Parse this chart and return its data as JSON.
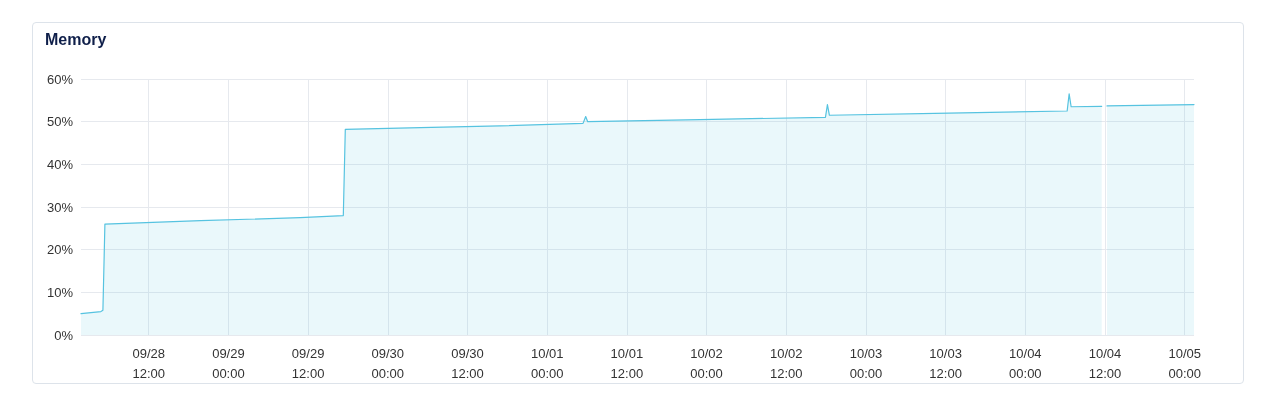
{
  "chart_data": {
    "type": "area",
    "title": "Memory",
    "x": [
      "--09-28T01:48",
      "--09-28T04:48",
      "--09-28T05:06",
      "--09-28T05:24",
      "--09-28T19:48",
      "--09-29T10:48",
      "--09-29T17:18",
      "--09-29T17:36",
      "--09-30T04:54",
      "--09-30T16:54",
      "--10-01T05:24",
      "--10-01T05:48",
      "--10-01T06:06",
      "--10-01T23:00",
      "--10-02T17:54",
      "--10-02T18:12",
      "--10-02T18:30",
      "--10-03T12:30",
      "--10-04T06:18",
      "--10-04T06:36",
      "--10-04T06:54",
      "--10-04T11:30",
      "--10-04T11:48",
      "--10-04T12:18",
      "--10-05T01:24"
    ],
    "series": [
      {
        "color": "#56c3e0",
        "values": [
          5,
          5.5,
          5.8,
          26,
          26.8,
          27.5,
          28,
          48.2,
          48.6,
          49,
          49.6,
          51.2,
          50,
          50.5,
          51,
          54,
          51.5,
          52,
          52.5,
          56.5,
          53.5,
          53.6,
          null,
          53.7,
          54
        ]
      }
    ],
    "xlim": [
      "--09-28T01:48",
      "--10-05T01:24"
    ],
    "xticks": [
      {
        "value": "--09-28T12:00",
        "label": "09/28\n12:00"
      },
      {
        "value": "--09-29T00:00",
        "label": "09/29\n00:00"
      },
      {
        "value": "--09-29T12:00",
        "label": "09/29\n12:00"
      },
      {
        "value": "--09-30T00:00",
        "label": "09/30\n00:00"
      },
      {
        "value": "--09-30T12:00",
        "label": "09/30\n12:00"
      },
      {
        "value": "--10-01T00:00",
        "label": "10/01\n00:00"
      },
      {
        "value": "--10-01T12:00",
        "label": "10/01\n12:00"
      },
      {
        "value": "--10-02T00:00",
        "label": "10/02\n00:00"
      },
      {
        "value": "--10-02T12:00",
        "label": "10/02\n12:00"
      },
      {
        "value": "--10-03T00:00",
        "label": "10/03\n00:00"
      },
      {
        "value": "--10-03T12:00",
        "label": "10/03\n12:00"
      },
      {
        "value": "--10-04T00:00",
        "label": "10/04\n00:00"
      },
      {
        "value": "--10-04T12:00",
        "label": "10/04\n12:00"
      },
      {
        "value": "--10-05T00:00",
        "label": "10/05\n00:00"
      }
    ],
    "ylim": [
      0,
      60
    ],
    "yticks": [
      {
        "value": 0,
        "label": "0%"
      },
      {
        "value": 10,
        "label": "10%"
      },
      {
        "value": 20,
        "label": "20%"
      },
      {
        "value": 30,
        "label": "30%"
      },
      {
        "value": 40,
        "label": "40%"
      },
      {
        "value": 50,
        "label": "50%"
      },
      {
        "value": 60,
        "label": "60%"
      }
    ],
    "grid": true,
    "marker": "none",
    "line_style": "solid"
  }
}
